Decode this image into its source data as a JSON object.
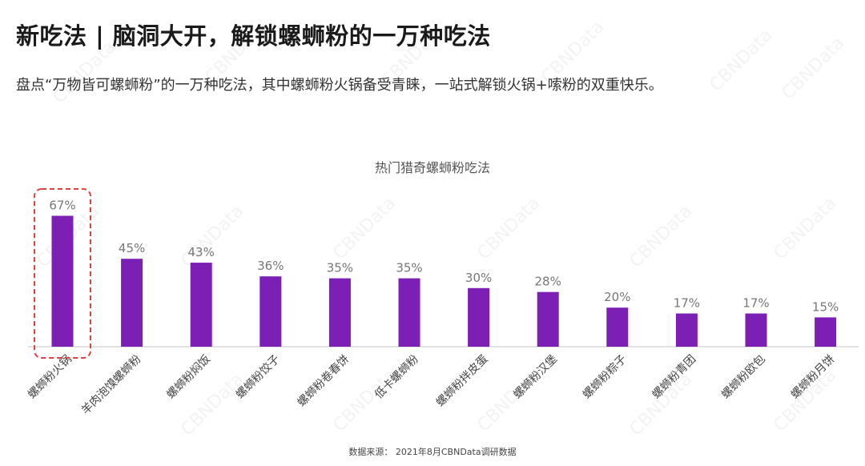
{
  "header": {
    "title": "新吃法 | 脑洞大开，解锁螺蛳粉的一万种吃法",
    "subtitle": "盘点“万物皆可螺蛳粉”的一万种吃法，其中螺蛳粉火锅备受青睐，一站式解锁火锅+嗦粉的双重快乐。"
  },
  "footnote": "数据来源：  2021年8月CBNData调研数据",
  "watermark": "CBNData",
  "colors": {
    "bar": "#7b1fb5",
    "label": "#777777",
    "highlight": "#e04040",
    "axis": "#d9d9d9"
  },
  "chart_data": {
    "type": "bar",
    "title": "热门猎奇螺蛳粉吃法",
    "categories": [
      "螺蛳粉火锅",
      "羊肉泡馍螺蛳粉",
      "螺蛳粉焖饭",
      "螺蛳粉饺子",
      "螺蛳粉卷春饼",
      "低卡螺蛳粉",
      "螺蛳粉拌皮蛋",
      "螺蛳粉汉堡",
      "螺蛳粉粽子",
      "螺蛳粉青团",
      "螺蛳粉欧包",
      "螺蛳粉月饼"
    ],
    "values": [
      67,
      45,
      43,
      36,
      35,
      35,
      30,
      28,
      20,
      17,
      17,
      15
    ],
    "value_labels": [
      "67%",
      "45%",
      "43%",
      "36%",
      "35%",
      "35%",
      "30%",
      "28%",
      "20%",
      "17%",
      "17%",
      "15%"
    ],
    "unit": "%",
    "ylim": [
      0,
      70
    ],
    "grid": false,
    "highlighted": "螺蛳粉火锅"
  }
}
